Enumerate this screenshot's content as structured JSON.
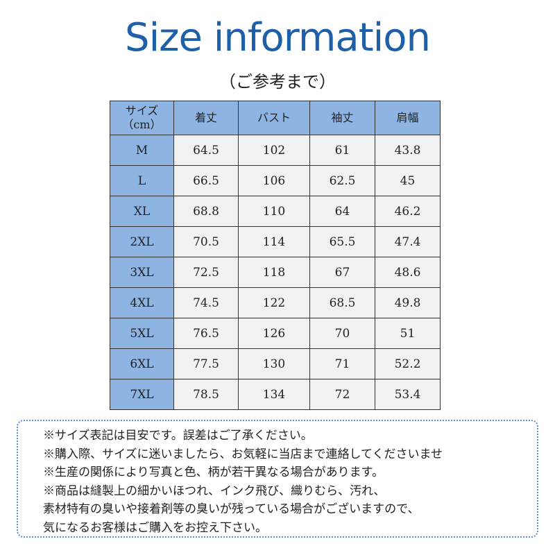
{
  "title": "Size information",
  "subtitle": "（ご参考まで）",
  "table": {
    "headers": [
      "サイズ\n（cm）",
      "着丈",
      "バスト",
      "袖丈",
      "肩幅"
    ],
    "rows": [
      [
        "M",
        "64.5",
        "102",
        "61",
        "43.8"
      ],
      [
        "L",
        "66.5",
        "106",
        "62.5",
        "45"
      ],
      [
        "XL",
        "68.8",
        "110",
        "64",
        "46.2"
      ],
      [
        "2XL",
        "70.5",
        "114",
        "65.5",
        "47.4"
      ],
      [
        "3XL",
        "72.5",
        "118",
        "67",
        "48.6"
      ],
      [
        "4XL",
        "74.5",
        "122",
        "68.5",
        "49.8"
      ],
      [
        "5XL",
        "76.5",
        "126",
        "70",
        "51"
      ],
      [
        "6XL",
        "77.5",
        "130",
        "71",
        "52.2"
      ],
      [
        "7XL",
        "78.5",
        "134",
        "72",
        "53.4"
      ]
    ]
  },
  "notes": [
    "※サイズ表記は目安です。誤差はご了承ください。",
    "※購入際、サイズに迷いましたら、お気軽に当店まで連絡してくださいませ",
    "※生産の関係により写真と色、柄が若干異なる場合があります。",
    "※商品は縫製上の細かいほつれ、インク飛び、織りむら、汚れ、",
    "素材特有の臭いや接着剤等の臭いが残っている場合がございますので、",
    "気になるお客様はご購入をお控え下さい。"
  ],
  "colors": {
    "title": "#1d5fa8",
    "header_bg": "#8db4e2",
    "cell_bg": "#f2f2f2",
    "notes_border": "#5b8fd0"
  }
}
